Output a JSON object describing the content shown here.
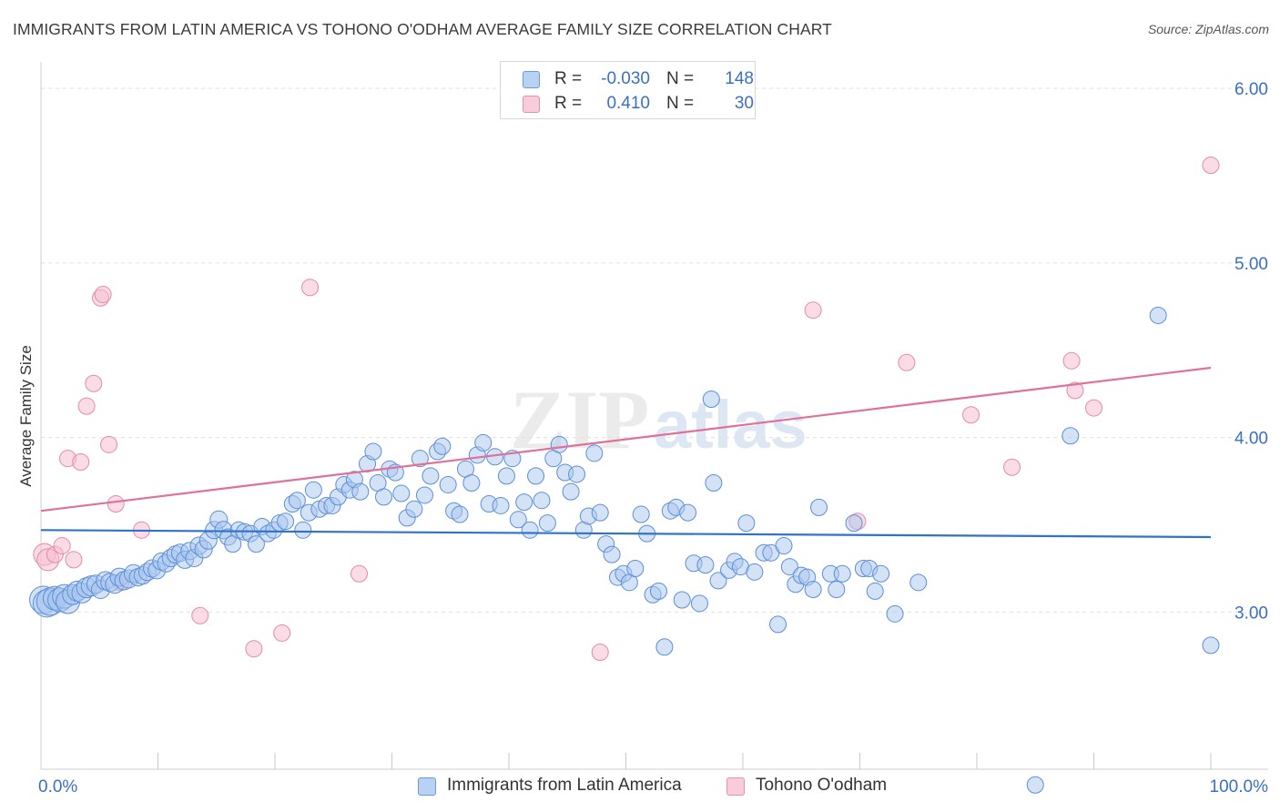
{
  "header": {
    "title": "IMMIGRANTS FROM LATIN AMERICA VS TOHONO O'ODHAM AVERAGE FAMILY SIZE CORRELATION CHART",
    "source": "Source: ZipAtlas.com"
  },
  "legend_top": {
    "rows": [
      {
        "r_label": "R =",
        "r_value": "-0.030",
        "n_label": "N =",
        "n_value": "148"
      },
      {
        "r_label": "R =",
        "r_value": "0.410",
        "n_label": "N =",
        "n_value": "30"
      }
    ]
  },
  "watermark": {
    "zip": "ZIP",
    "atlas": "atlas"
  },
  "colors": {
    "blue_fill": "#a9c6ee",
    "blue_stroke": "#5b8fd8",
    "blue_line": "#2f72c9",
    "pink_fill": "#f6c0d1",
    "pink_stroke": "#e58aa8",
    "pink_line": "#e0709a",
    "tick_text": "#3a6fc4",
    "grid": "#e0e0e0"
  },
  "chart_data": {
    "type": "scatter",
    "title": "IMMIGRANTS FROM LATIN AMERICA VS TOHONO O'ODHAM AVERAGE FAMILY SIZE CORRELATION CHART",
    "xlabel": "",
    "ylabel": "Average Family Size",
    "xlim": [
      0,
      100
    ],
    "ylim": [
      2.1,
      6.1
    ],
    "x_tick_labels": [
      "0.0%",
      "100.0%"
    ],
    "y_ticks": [
      3.0,
      4.0,
      5.0,
      6.0
    ],
    "y_tick_labels": [
      "3.00",
      "4.00",
      "5.00",
      "6.00"
    ],
    "grid": true,
    "legend_position": "bottom",
    "series": [
      {
        "name": "Immigrants from Latin America",
        "color": "#a9c6ee",
        "r": -0.03,
        "n": 148,
        "trend": {
          "x": [
            0,
            100
          ],
          "y": [
            3.47,
            3.43
          ]
        },
        "points": [
          [
            0.2,
            3.07
          ],
          [
            0.5,
            3.05
          ],
          [
            0.8,
            3.06
          ],
          [
            1.2,
            3.08
          ],
          [
            1.6,
            3.07
          ],
          [
            2.0,
            3.09
          ],
          [
            2.3,
            3.06
          ],
          [
            2.7,
            3.1
          ],
          [
            3.1,
            3.12
          ],
          [
            3.5,
            3.11
          ],
          [
            3.9,
            3.14
          ],
          [
            4.3,
            3.15
          ],
          [
            4.7,
            3.16
          ],
          [
            5.1,
            3.13
          ],
          [
            5.5,
            3.18
          ],
          [
            5.9,
            3.17
          ],
          [
            6.3,
            3.16
          ],
          [
            6.7,
            3.2
          ],
          [
            7.1,
            3.18
          ],
          [
            7.5,
            3.19
          ],
          [
            7.9,
            3.22
          ],
          [
            8.3,
            3.2
          ],
          [
            8.7,
            3.21
          ],
          [
            9.1,
            3.23
          ],
          [
            9.5,
            3.25
          ],
          [
            9.9,
            3.24
          ],
          [
            10.3,
            3.29
          ],
          [
            10.7,
            3.28
          ],
          [
            11.1,
            3.31
          ],
          [
            11.5,
            3.33
          ],
          [
            11.9,
            3.34
          ],
          [
            12.3,
            3.3
          ],
          [
            12.7,
            3.35
          ],
          [
            13.1,
            3.31
          ],
          [
            13.5,
            3.38
          ],
          [
            13.9,
            3.36
          ],
          [
            14.3,
            3.41
          ],
          [
            14.8,
            3.47
          ],
          [
            15.2,
            3.53
          ],
          [
            15.6,
            3.47
          ],
          [
            16.0,
            3.43
          ],
          [
            16.4,
            3.39
          ],
          [
            16.9,
            3.47
          ],
          [
            17.4,
            3.46
          ],
          [
            17.9,
            3.45
          ],
          [
            18.4,
            3.39
          ],
          [
            18.9,
            3.49
          ],
          [
            19.4,
            3.45
          ],
          [
            19.9,
            3.47
          ],
          [
            20.4,
            3.51
          ],
          [
            20.9,
            3.52
          ],
          [
            21.5,
            3.62
          ],
          [
            21.9,
            3.64
          ],
          [
            22.4,
            3.47
          ],
          [
            22.9,
            3.57
          ],
          [
            23.3,
            3.7
          ],
          [
            23.8,
            3.59
          ],
          [
            24.4,
            3.61
          ],
          [
            24.9,
            3.61
          ],
          [
            25.4,
            3.66
          ],
          [
            25.9,
            3.73
          ],
          [
            26.4,
            3.7
          ],
          [
            26.8,
            3.76
          ],
          [
            27.3,
            3.69
          ],
          [
            27.9,
            3.85
          ],
          [
            28.4,
            3.92
          ],
          [
            28.8,
            3.74
          ],
          [
            29.3,
            3.66
          ],
          [
            29.8,
            3.82
          ],
          [
            30.3,
            3.8
          ],
          [
            30.8,
            3.68
          ],
          [
            31.3,
            3.54
          ],
          [
            31.9,
            3.59
          ],
          [
            32.4,
            3.88
          ],
          [
            32.8,
            3.67
          ],
          [
            33.3,
            3.78
          ],
          [
            33.9,
            3.92
          ],
          [
            34.3,
            3.95
          ],
          [
            34.8,
            3.73
          ],
          [
            35.3,
            3.58
          ],
          [
            35.8,
            3.56
          ],
          [
            36.3,
            3.82
          ],
          [
            36.8,
            3.74
          ],
          [
            37.3,
            3.9
          ],
          [
            37.8,
            3.97
          ],
          [
            38.3,
            3.62
          ],
          [
            38.8,
            3.89
          ],
          [
            39.3,
            3.61
          ],
          [
            39.8,
            3.78
          ],
          [
            40.3,
            3.88
          ],
          [
            40.8,
            3.53
          ],
          [
            41.3,
            3.63
          ],
          [
            41.8,
            3.47
          ],
          [
            42.3,
            3.78
          ],
          [
            42.8,
            3.64
          ],
          [
            43.3,
            3.51
          ],
          [
            43.8,
            3.88
          ],
          [
            44.3,
            3.96
          ],
          [
            44.8,
            3.8
          ],
          [
            45.3,
            3.69
          ],
          [
            45.8,
            3.79
          ],
          [
            46.4,
            3.47
          ],
          [
            46.8,
            3.55
          ],
          [
            47.3,
            3.91
          ],
          [
            47.8,
            3.57
          ],
          [
            48.3,
            3.39
          ],
          [
            48.8,
            3.33
          ],
          [
            49.3,
            3.2
          ],
          [
            49.8,
            3.22
          ],
          [
            50.3,
            3.17
          ],
          [
            50.8,
            3.25
          ],
          [
            51.3,
            3.56
          ],
          [
            51.8,
            3.45
          ],
          [
            52.3,
            3.1
          ],
          [
            52.8,
            3.12
          ],
          [
            53.3,
            2.8
          ],
          [
            53.8,
            3.58
          ],
          [
            54.3,
            3.6
          ],
          [
            54.8,
            3.07
          ],
          [
            55.3,
            3.57
          ],
          [
            55.8,
            3.28
          ],
          [
            56.3,
            3.05
          ],
          [
            56.8,
            3.27
          ],
          [
            57.3,
            4.22
          ],
          [
            57.5,
            3.74
          ],
          [
            57.9,
            3.18
          ],
          [
            58.8,
            3.24
          ],
          [
            59.3,
            3.29
          ],
          [
            59.8,
            3.26
          ],
          [
            60.3,
            3.51
          ],
          [
            61.0,
            3.23
          ],
          [
            61.8,
            3.34
          ],
          [
            62.4,
            3.34
          ],
          [
            63.0,
            2.93
          ],
          [
            63.5,
            3.38
          ],
          [
            64.0,
            3.26
          ],
          [
            64.5,
            3.16
          ],
          [
            65.0,
            3.21
          ],
          [
            65.5,
            3.2
          ],
          [
            66.0,
            3.13
          ],
          [
            66.5,
            3.6
          ],
          [
            67.5,
            3.22
          ],
          [
            68.0,
            3.13
          ],
          [
            68.5,
            3.22
          ],
          [
            69.5,
            3.51
          ],
          [
            70.3,
            3.25
          ],
          [
            70.8,
            3.25
          ],
          [
            71.3,
            3.12
          ],
          [
            71.8,
            3.22
          ],
          [
            73.0,
            2.99
          ],
          [
            75.0,
            3.17
          ],
          [
            85.0,
            2.01
          ],
          [
            88.0,
            4.01
          ],
          [
            95.5,
            4.7
          ],
          [
            100.0,
            2.81
          ]
        ]
      },
      {
        "name": "Tohono O'odham",
        "color": "#f6c0d1",
        "r": 0.41,
        "n": 30,
        "trend": {
          "x": [
            0,
            100
          ],
          "y": [
            3.58,
            4.4
          ]
        },
        "points": [
          [
            0.3,
            3.33
          ],
          [
            0.6,
            3.3
          ],
          [
            1.2,
            3.33
          ],
          [
            1.8,
            3.38
          ],
          [
            2.3,
            3.88
          ],
          [
            2.8,
            3.3
          ],
          [
            3.4,
            3.86
          ],
          [
            3.9,
            4.18
          ],
          [
            4.5,
            4.31
          ],
          [
            5.1,
            4.8
          ],
          [
            5.3,
            4.82
          ],
          [
            5.8,
            3.96
          ],
          [
            6.4,
            3.62
          ],
          [
            6.8,
            3.17
          ],
          [
            8.6,
            3.47
          ],
          [
            13.6,
            2.98
          ],
          [
            18.2,
            2.79
          ],
          [
            20.6,
            2.88
          ],
          [
            23.0,
            4.86
          ],
          [
            27.2,
            3.22
          ],
          [
            47.8,
            2.77
          ],
          [
            66.0,
            4.73
          ],
          [
            69.8,
            3.52
          ],
          [
            74.0,
            4.43
          ],
          [
            79.5,
            4.13
          ],
          [
            83.0,
            3.83
          ],
          [
            88.1,
            4.44
          ],
          [
            88.4,
            4.27
          ],
          [
            90.0,
            4.17
          ],
          [
            100.0,
            5.56
          ]
        ]
      }
    ]
  }
}
